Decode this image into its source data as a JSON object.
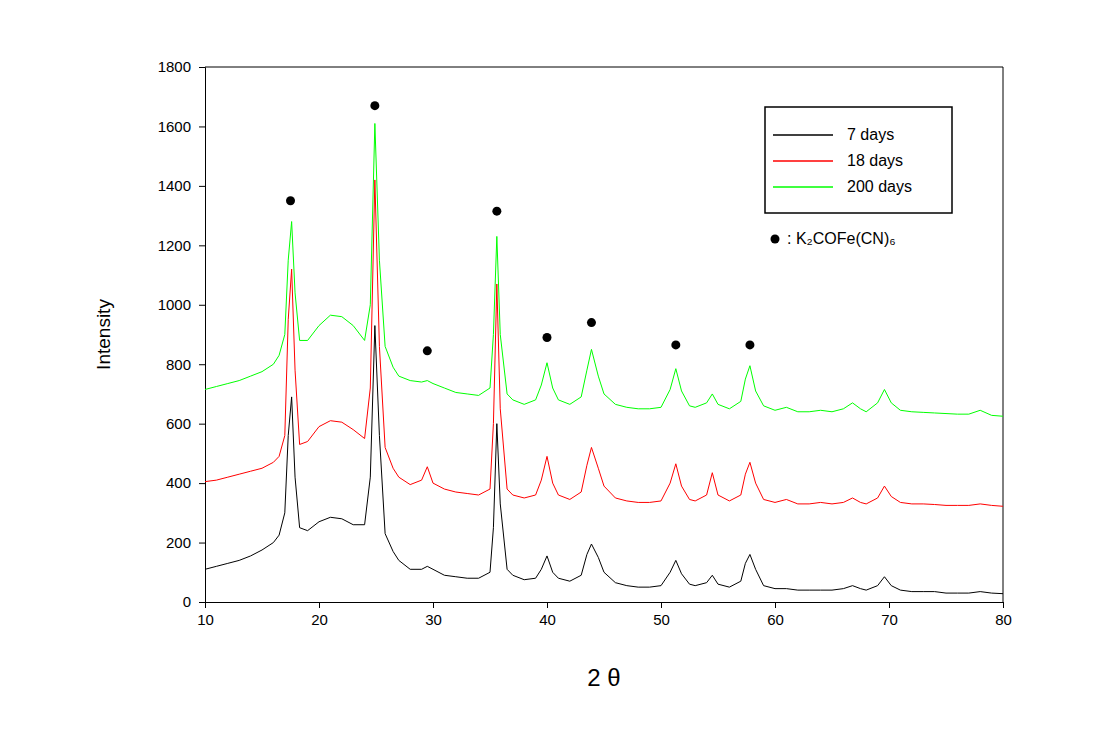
{
  "chart_data": {
    "type": "line",
    "x_label": "2 θ",
    "y_label": "Intensity",
    "xlim": [
      10,
      80
    ],
    "xticks": [
      10,
      20,
      30,
      40,
      50,
      60,
      70,
      80
    ],
    "ylim": [
      0,
      1800
    ],
    "yticks": [
      0,
      200,
      400,
      600,
      800,
      1000,
      1200,
      1400,
      1600,
      1800
    ],
    "legend": "top-right",
    "x": [
      10,
      11,
      12,
      13,
      14,
      15,
      16,
      16.5,
      17,
      17.3,
      17.6,
      17.9,
      18.3,
      19,
      20,
      21,
      22,
      23,
      24,
      24.5,
      24.9,
      25.3,
      25.8,
      26.5,
      27,
      28,
      29,
      29.5,
      30,
      31,
      32,
      33,
      34,
      35,
      35.3,
      35.6,
      35.9,
      36.5,
      37,
      38,
      39,
      39.5,
      40,
      40.5,
      41,
      42,
      43,
      43.5,
      43.9,
      44.5,
      45,
      46,
      47,
      48,
      49,
      50,
      50.8,
      51.3,
      51.8,
      52.5,
      53,
      54,
      54.5,
      55,
      56,
      57,
      57.4,
      57.8,
      58.3,
      59,
      60,
      61,
      62,
      63,
      64,
      65,
      66,
      66.8,
      67.5,
      68,
      69,
      69.6,
      70.2,
      71,
      72,
      73,
      74,
      75,
      76,
      77,
      78,
      79,
      80
    ],
    "series": [
      {
        "name": "7 days",
        "color": "#000000",
        "values": [
          110,
          120,
          130,
          140,
          155,
          175,
          200,
          225,
          300,
          560,
          690,
          420,
          250,
          240,
          270,
          285,
          280,
          260,
          260,
          420,
          930,
          560,
          230,
          170,
          140,
          110,
          110,
          120,
          110,
          90,
          85,
          80,
          80,
          100,
          250,
          600,
          330,
          110,
          90,
          75,
          80,
          110,
          155,
          100,
          80,
          70,
          90,
          160,
          195,
          150,
          100,
          65,
          55,
          50,
          50,
          55,
          100,
          140,
          95,
          60,
          55,
          65,
          90,
          60,
          50,
          70,
          130,
          160,
          110,
          55,
          45,
          45,
          40,
          40,
          40,
          40,
          45,
          55,
          45,
          40,
          55,
          85,
          55,
          40,
          35,
          35,
          35,
          30,
          30,
          30,
          35,
          30,
          28
        ]
      },
      {
        "name": "18 days",
        "color": "#ff0000",
        "values": [
          405,
          410,
          420,
          430,
          440,
          450,
          470,
          490,
          560,
          950,
          1120,
          780,
          530,
          540,
          590,
          610,
          605,
          580,
          550,
          720,
          1420,
          860,
          520,
          450,
          420,
          395,
          410,
          455,
          400,
          380,
          370,
          365,
          360,
          380,
          600,
          1070,
          650,
          380,
          360,
          350,
          360,
          410,
          490,
          400,
          360,
          345,
          370,
          460,
          520,
          450,
          390,
          350,
          340,
          335,
          335,
          340,
          400,
          465,
          390,
          345,
          340,
          360,
          435,
          360,
          340,
          360,
          430,
          470,
          400,
          345,
          335,
          345,
          330,
          330,
          335,
          330,
          335,
          350,
          335,
          330,
          350,
          390,
          355,
          335,
          330,
          330,
          328,
          325,
          325,
          325,
          330,
          325,
          322
        ]
      },
      {
        "name": "200 days",
        "color": "#00ff00",
        "values": [
          715,
          725,
          735,
          745,
          760,
          775,
          800,
          830,
          900,
          1150,
          1280,
          1040,
          880,
          880,
          930,
          965,
          960,
          930,
          880,
          1000,
          1610,
          1150,
          860,
          790,
          760,
          745,
          740,
          745,
          735,
          720,
          705,
          700,
          695,
          720,
          900,
          1230,
          900,
          700,
          680,
          665,
          680,
          730,
          805,
          720,
          680,
          665,
          690,
          780,
          850,
          760,
          700,
          665,
          655,
          650,
          650,
          655,
          715,
          785,
          710,
          660,
          655,
          670,
          700,
          665,
          650,
          675,
          750,
          795,
          710,
          660,
          645,
          655,
          640,
          640,
          645,
          640,
          650,
          670,
          650,
          640,
          670,
          715,
          670,
          645,
          640,
          638,
          636,
          634,
          632,
          632,
          645,
          628,
          625
        ]
      }
    ],
    "peak_markers": {
      "label": ": K₂COFe(CN)₆",
      "color": "#000000",
      "marker": "circle",
      "x": [
        17.5,
        24.9,
        29.5,
        35.6,
        40.0,
        43.9,
        51.3,
        57.8
      ],
      "y": [
        1350,
        1670,
        845,
        1315,
        890,
        940,
        865,
        865
      ]
    }
  }
}
